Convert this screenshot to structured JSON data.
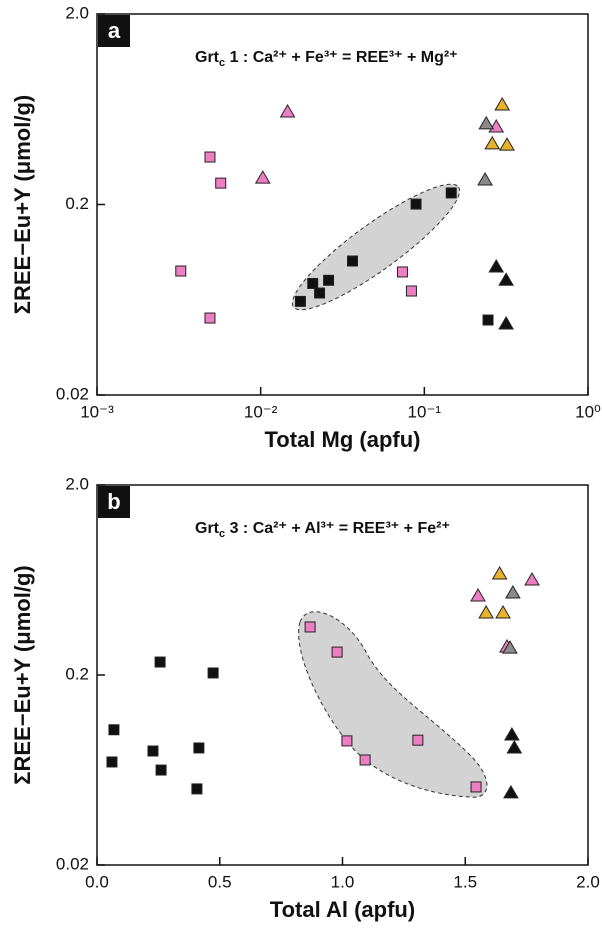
{
  "chart_data": [
    {
      "type": "scatter",
      "panel_label": "a",
      "annotation": [
        "Grt",
        "c",
        " 1 : Ca²⁺ + Fe³⁺ = REE³⁺ + Mg²⁺"
      ],
      "xlabel": "Total Mg (apfu)",
      "ylabel": "ΣREE−Eu+Y (μmol/g)",
      "xscale": "log",
      "yscale": "log",
      "xlim": [
        0.001,
        1
      ],
      "ylim": [
        0.02,
        2
      ],
      "xticks": [
        {
          "value": 0.001,
          "label": "10⁻³"
        },
        {
          "value": 0.01,
          "label": "10⁻²"
        },
        {
          "value": 0.1,
          "label": "10⁻¹"
        },
        {
          "value": 1,
          "label": "10⁰"
        }
      ],
      "yticks": [
        0.02,
        0.2,
        {
          "value": 2,
          "label": "2.0"
        }
      ],
      "series": [
        {
          "marker": "square",
          "color": "#111111",
          "x": [
            0.0175,
            0.0208,
            0.0229,
            0.026,
            0.0364,
            0.089,
            0.146,
            0.245
          ],
          "values": [
            0.062,
            0.077,
            0.0686,
            0.08,
            0.101,
            0.201,
            0.23,
            0.0495
          ]
        },
        {
          "marker": "square",
          "color": "#ee7ec4",
          "x": [
            0.0049,
            0.0057,
            0.00325,
            0.0049,
            0.0735,
            0.0834
          ],
          "values": [
            0.355,
            0.259,
            0.0895,
            0.0507,
            0.0885,
            0.0703
          ]
        },
        {
          "marker": "triangle",
          "color": "#ee7ec4",
          "x": [
            0.0146,
            0.0103,
            0.275
          ],
          "values": [
            0.612,
            0.275,
            0.51
          ]
        },
        {
          "marker": "triangle",
          "color": "#8a8a8a",
          "x": [
            0.239,
            0.235
          ],
          "values": [
            0.53,
            0.269
          ]
        },
        {
          "marker": "triangle",
          "color": "#e8b22a",
          "x": [
            0.299,
            0.26,
            0.32
          ],
          "values": [
            0.666,
            0.416,
            0.41
          ]
        },
        {
          "marker": "triangle",
          "color": "#111111",
          "x": [
            0.275,
            0.316,
            0.316
          ],
          "values": [
            0.094,
            0.08,
            0.0472
          ]
        }
      ]
    },
    {
      "type": "scatter",
      "panel_label": "b",
      "annotation": [
        "Grt",
        "c",
        " 3 : Ca²⁺ + Al³⁺ = REE³⁺ + Fe²⁺"
      ],
      "xlabel": "Total Al (apfu)",
      "ylabel": "ΣREE−Eu+Y (μmol/g)",
      "xscale": "linear",
      "yscale": "log",
      "xlim": [
        0,
        2
      ],
      "ylim": [
        0.02,
        2
      ],
      "xticks": [
        {
          "value": 0,
          "label": "0.0"
        },
        0.5,
        {
          "value": 1,
          "label": "1.0"
        },
        1.5,
        {
          "value": 2,
          "label": "2.0"
        }
      ],
      "yticks": [
        0.02,
        0.2,
        {
          "value": 2,
          "label": "2.0"
        }
      ],
      "series": [
        {
          "marker": "square",
          "color": "#111111",
          "x": [
            0.257,
            0.473,
            0.069,
            0.061,
            0.228,
            0.261,
            0.415,
            0.407
          ],
          "values": [
            0.234,
            0.205,
            0.103,
            0.0697,
            0.0796,
            0.0632,
            0.0826,
            0.0503
          ]
        },
        {
          "marker": "square",
          "color": "#ee7ec4",
          "x": [
            0.868,
            0.978,
            1.018,
            1.092,
            1.307,
            1.544
          ],
          "values": [
            0.358,
            0.264,
            0.09,
            0.0714,
            0.0908,
            0.0515
          ]
        },
        {
          "marker": "triangle",
          "color": "#ee7ec4",
          "x": [
            1.552,
            1.772,
            1.67
          ],
          "values": [
            0.521,
            0.632,
            0.281
          ]
        },
        {
          "marker": "triangle",
          "color": "#8a8a8a",
          "x": [
            1.694,
            1.682
          ],
          "values": [
            0.54,
            0.277
          ]
        },
        {
          "marker": "triangle",
          "color": "#e8b22a",
          "x": [
            1.64,
            1.585,
            1.654
          ],
          "values": [
            0.68,
            0.424,
            0.424
          ]
        },
        {
          "marker": "triangle",
          "color": "#111111",
          "x": [
            1.69,
            1.7,
            1.686
          ],
          "values": [
            0.0966,
            0.0826,
            0.0479
          ]
        }
      ]
    }
  ]
}
